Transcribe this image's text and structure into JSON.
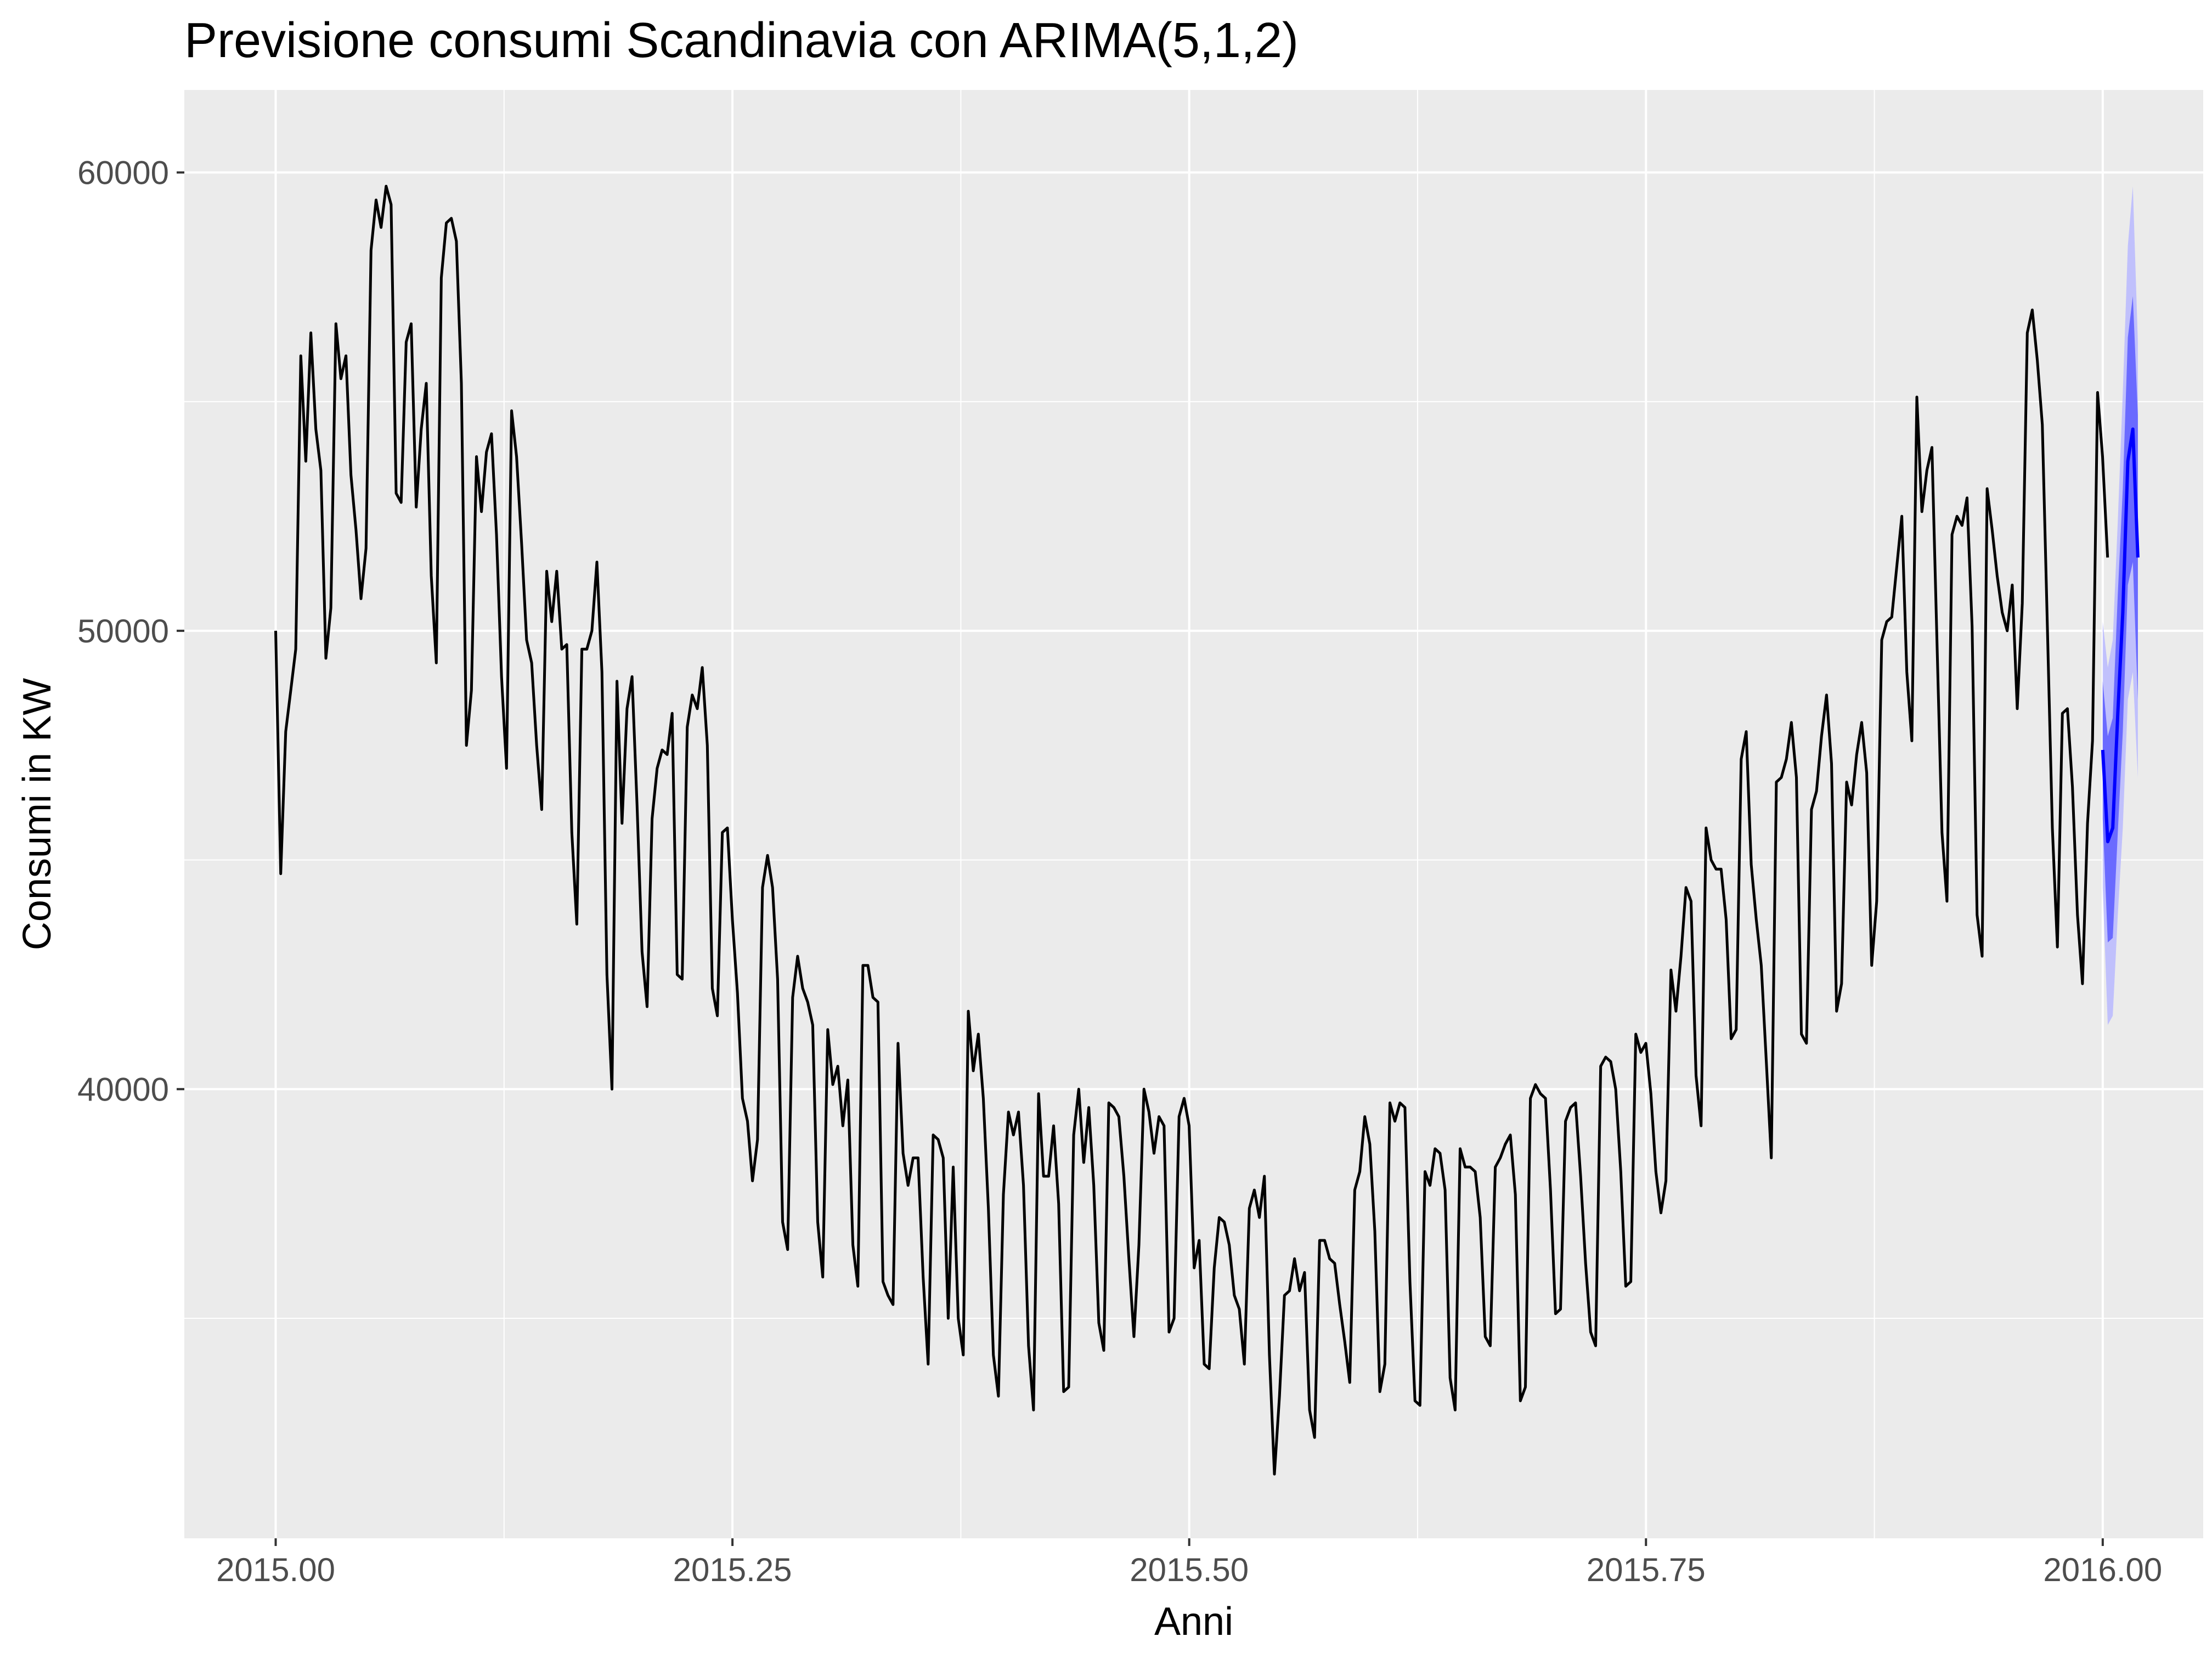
{
  "chart_data": {
    "type": "line",
    "title": "Previsione consumi Scandinavia con ARIMA(5,1,2)",
    "xlabel": "Anni",
    "ylabel": "Consumi in KW",
    "xlim": [
      2014.95,
      2016.055
    ],
    "ylim": [
      30200,
      61800
    ],
    "x_ticks": [
      2015.0,
      2015.25,
      2015.5,
      2015.75,
      2016.0
    ],
    "x_tick_labels": [
      "2015.00",
      "2015.25",
      "2015.50",
      "2015.75",
      "2016.00"
    ],
    "y_ticks": [
      40000,
      50000,
      60000
    ],
    "y_tick_labels": [
      "40000",
      "50000",
      "60000"
    ],
    "grid": true,
    "legend": "none",
    "colors": {
      "panel": "#ebebeb",
      "grid": "#ffffff",
      "observed": "#000000",
      "forecast": "#0000ff",
      "band80": "#5a5aff",
      "band95": "#b8b8ff"
    },
    "observed": {
      "x_start": 2015.0,
      "step": 0.002747,
      "values": [
        50000,
        44700,
        47800,
        48700,
        49600,
        56000,
        53700,
        56500,
        54400,
        53500,
        49400,
        50500,
        56700,
        55500,
        56000,
        53400,
        52200,
        50700,
        51800,
        58300,
        59400,
        58800,
        59700,
        59300,
        53000,
        52800,
        56300,
        56700,
        52700,
        54400,
        55400,
        51200,
        49300,
        57700,
        58900,
        59000,
        58500,
        55400,
        47500,
        48700,
        53800,
        52600,
        53900,
        54300,
        52100,
        49000,
        47000,
        54800,
        53800,
        51900,
        49800,
        49300,
        47500,
        46100,
        51300,
        50200,
        51300,
        49600,
        49700,
        45600,
        43600,
        49600,
        49600,
        50000,
        51500,
        49100,
        42500,
        40000,
        48900,
        45800,
        48300,
        49000,
        46200,
        43000,
        41800,
        45900,
        47000,
        47400,
        47300,
        48200,
        42500,
        42400,
        47900,
        48600,
        48300,
        49200,
        47500,
        42200,
        41600,
        45600,
        45700,
        43700,
        42100,
        39800,
        39300,
        38000,
        38900,
        44400,
        45100,
        44400,
        42400,
        37100,
        36500,
        42000,
        42900,
        42200,
        41900,
        41400,
        37100,
        35900,
        41300,
        40100,
        40500,
        39200,
        40200,
        36600,
        35700,
        42700,
        42700,
        42000,
        41900,
        35800,
        35500,
        35300,
        41000,
        38600,
        37900,
        38500,
        38500,
        35900,
        34000,
        39000,
        38900,
        38500,
        35000,
        38300,
        35000,
        34200,
        41700,
        40400,
        41200,
        39800,
        37400,
        34200,
        33300,
        37700,
        39500,
        39000,
        39500,
        37900,
        34400,
        33000,
        39900,
        38100,
        38100,
        39200,
        37500,
        33400,
        33500,
        39000,
        40000,
        38400,
        39600,
        37900,
        34900,
        34300,
        39700,
        39600,
        39400,
        38100,
        36300,
        34600,
        36600,
        40000,
        39500,
        38600,
        39400,
        39200,
        34700,
        35000,
        39400,
        39800,
        39200,
        36100,
        36700,
        34000,
        33900,
        36100,
        37200,
        37100,
        36600,
        35500,
        35200,
        34000,
        37400,
        37800,
        37200,
        38100,
        34200,
        31600,
        33300,
        35500,
        35600,
        36300,
        35600,
        36000,
        33000,
        32400,
        36700,
        36700,
        36300,
        36200,
        35300,
        34500,
        33600,
        37800,
        38200,
        39400,
        38800,
        36900,
        33400,
        34000,
        39700,
        39300,
        39700,
        39600,
        35800,
        33200,
        33100,
        38200,
        37900,
        38700,
        38600,
        37800,
        33700,
        33000,
        38700,
        38300,
        38300,
        38200,
        37200,
        34600,
        34400,
        38300,
        38500,
        38800,
        39000,
        37700,
        33200,
        33500,
        39800,
        40100,
        39900,
        39800,
        37800,
        35100,
        35200,
        39300,
        39600,
        39700,
        38100,
        36200,
        34700,
        34400,
        40500,
        40700,
        40600,
        40000,
        38200,
        35700,
        35800,
        41200,
        40800,
        41000,
        39900,
        38200,
        37300,
        38000,
        42600,
        41700,
        42900,
        44400,
        44100,
        40300,
        39200,
        45700,
        45000,
        44800,
        44800,
        43700,
        41100,
        41300,
        47200,
        47800,
        44900,
        43700,
        42700,
        40600,
        38500,
        46700,
        46800,
        47200,
        48000,
        46800,
        41200,
        41000,
        46100,
        46500,
        47700,
        48600,
        47100,
        41700,
        42300,
        46700,
        46200,
        47300,
        48000,
        46900,
        42700,
        44100,
        49800,
        50200,
        50300,
        51400,
        52500,
        49100,
        47600,
        55100,
        52600,
        53500,
        54000,
        49800,
        45600,
        44100,
        52100,
        52500,
        52300,
        52900,
        50100,
        43800,
        42900,
        53100,
        52200,
        51200,
        50400,
        50000,
        51000,
        48300,
        50600,
        56500,
        57000,
        55900,
        54500,
        50100,
        45700,
        43100,
        48200,
        48300,
        46600,
        43800,
        42300,
        45800,
        47600,
        55200,
        53800,
        51600
      ]
    },
    "forecast": {
      "x_start": 2016.0,
      "step": 0.002747,
      "mean": [
        47400,
        45400,
        45700,
        48200,
        50400,
        53700,
        54400,
        51600
      ],
      "lo80": [
        45900,
        43200,
        43300,
        45600,
        47800,
        51000,
        51500,
        48500
      ],
      "hi80": [
        48900,
        47700,
        48100,
        50800,
        53100,
        56400,
        57300,
        54700
      ],
      "lo95": [
        44400,
        41400,
        41600,
        43800,
        45700,
        48500,
        49100,
        46800
      ],
      "hi95": [
        50200,
        49200,
        49800,
        52400,
        55200,
        58400,
        59700,
        56300
      ]
    }
  }
}
